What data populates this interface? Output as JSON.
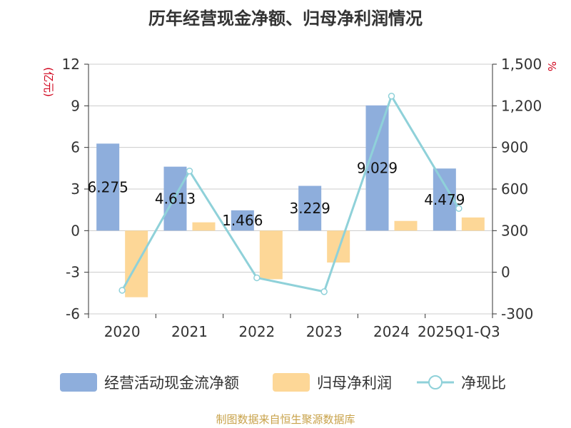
{
  "colors": {
    "cash_flow": "#8eaedc",
    "net_profit": "#fdd797",
    "ratio": "#8fd1d9",
    "axis": "#333333",
    "unit_left": "#d0021b",
    "source": "#c8a24a"
  },
  "chart_data": {
    "type": "bar",
    "title": "历年经营现金净额、归母净利润情况",
    "categories": [
      "2020",
      "2021",
      "2022",
      "2023",
      "2024",
      "2025Q1-Q3"
    ],
    "series": [
      {
        "name": "经营活动现金流净额",
        "type": "bar",
        "axis": "left",
        "values": [
          6.275,
          4.613,
          1.466,
          3.229,
          9.029,
          4.479
        ],
        "labels": [
          "6.275",
          "4.613",
          "1.466",
          "3.229",
          "9.029",
          "4.479"
        ]
      },
      {
        "name": "归母净利润",
        "type": "bar",
        "axis": "left",
        "values": [
          -4.8,
          0.6,
          -3.5,
          -2.3,
          0.7,
          0.95
        ]
      },
      {
        "name": "净现比",
        "type": "line",
        "axis": "right",
        "values": [
          -130,
          730,
          -40,
          -140,
          1270,
          460
        ]
      }
    ],
    "y_left": {
      "label": "(亿元)",
      "min": -6,
      "max": 12,
      "ticks": [
        "-6",
        "-3",
        "0",
        "3",
        "6",
        "9",
        "12"
      ]
    },
    "y_right": {
      "label": "%",
      "min": -300,
      "max": 1500,
      "ticks": [
        "-300",
        "0",
        "300",
        "600",
        "900",
        "1,200",
        "1,500"
      ]
    },
    "grid": true,
    "legend_position": "bottom"
  },
  "source": "制图数据来自恒生聚源数据库"
}
